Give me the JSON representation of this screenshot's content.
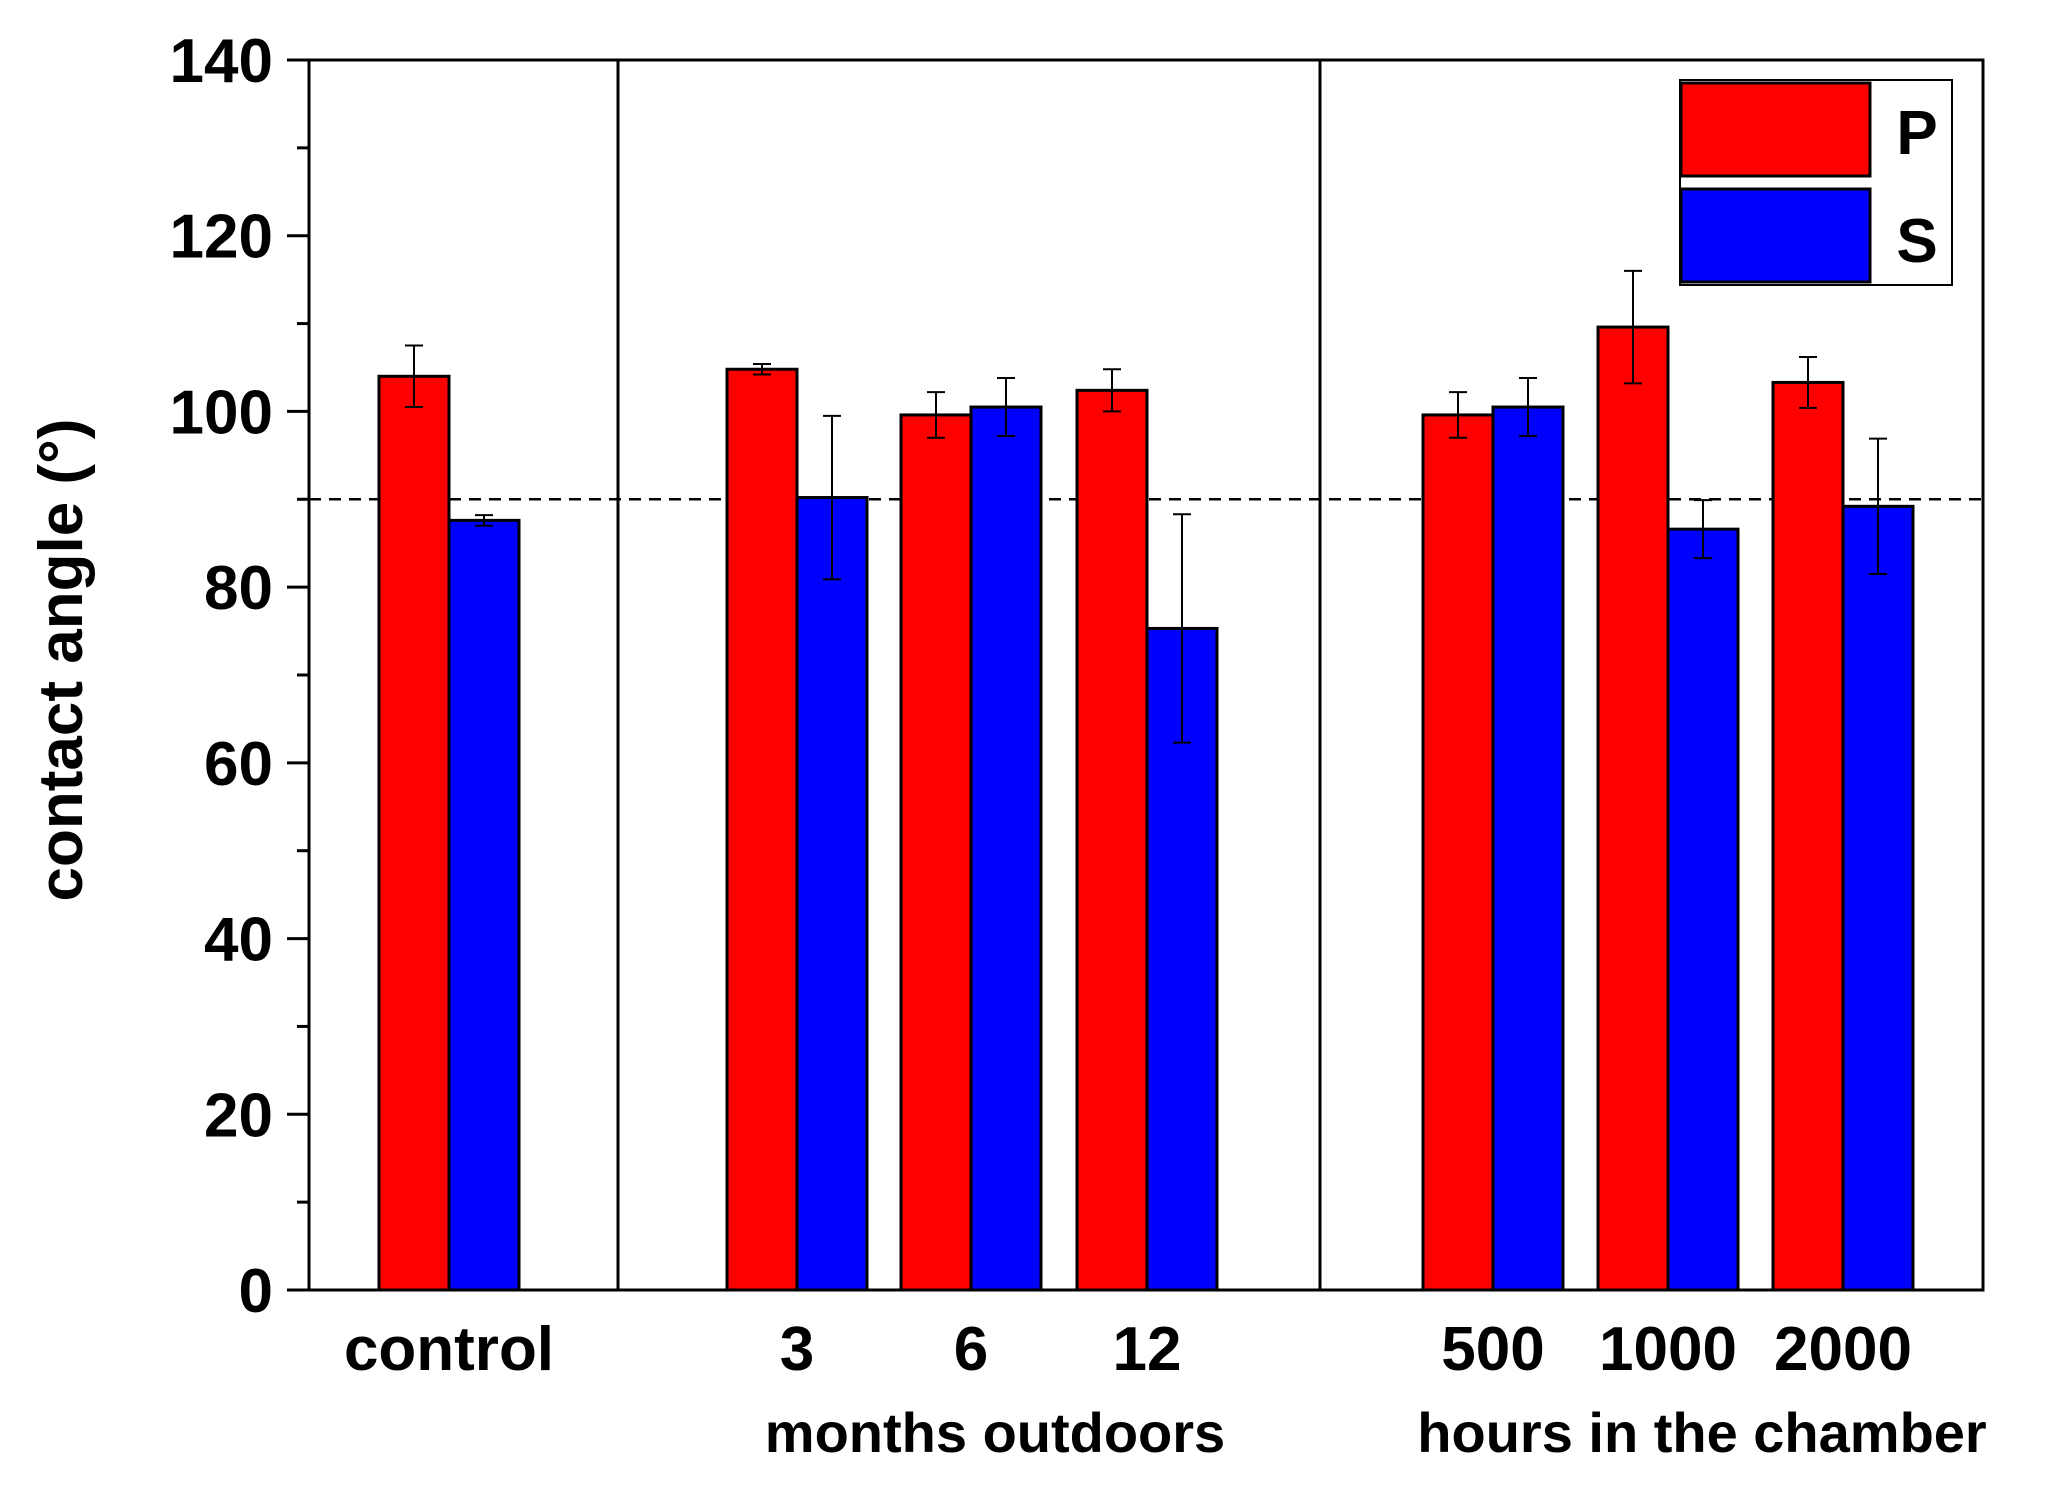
{
  "chart_data": {
    "type": "bar",
    "ylabel": "contact angle (°)",
    "ylim": [
      0,
      140
    ],
    "yticks": [
      0,
      20,
      40,
      60,
      80,
      100,
      120,
      140
    ],
    "categories": [
      "control",
      "3",
      "6",
      "12",
      "500",
      "1000",
      "2000"
    ],
    "group_labels": [
      "months outdoors",
      "hours in the chamber"
    ],
    "reference_line": 90,
    "series": [
      {
        "name": "P",
        "color": "#ff0000",
        "values": [
          104,
          104.8,
          99.6,
          102.4,
          99.6,
          109.6,
          103.3
        ],
        "errors": [
          3.5,
          0.6,
          2.6,
          2.4,
          2.6,
          6.4,
          2.9
        ]
      },
      {
        "name": "S",
        "color": "#0000ff",
        "values": [
          87.6,
          90.2,
          100.5,
          75.3,
          100.5,
          86.6,
          89.2
        ],
        "errors": [
          0.6,
          9.3,
          3.3,
          13.0,
          3.3,
          3.3,
          7.7
        ]
      }
    ]
  }
}
